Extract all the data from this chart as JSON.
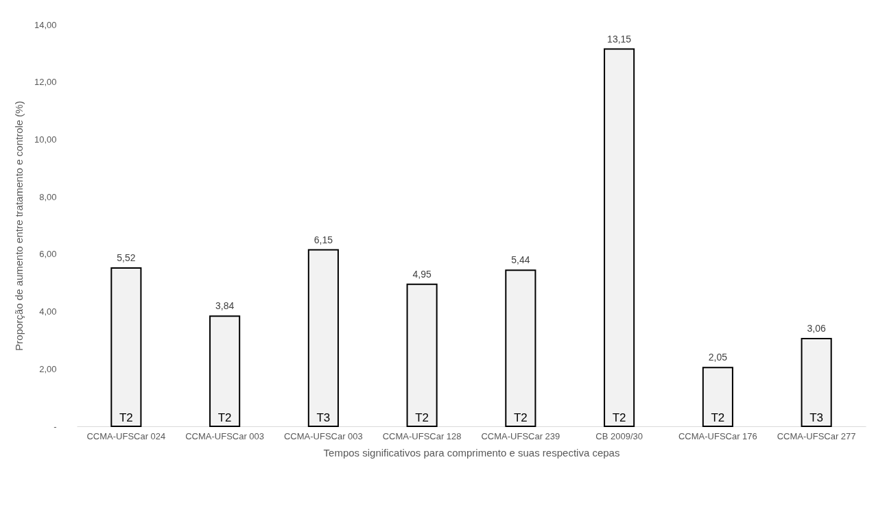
{
  "chart_data": {
    "type": "bar",
    "categories": [
      "CCMA-UFSCar\n024",
      "CCMA-UFSCar\n003",
      "CCMA-UFSCar\n003",
      "CCMA-UFSCar\n128",
      "CCMA-UFSCar\n239",
      "CB 2009/30",
      "CCMA-UFSCar\n176",
      "CCMA-UFSCar\n277"
    ],
    "values": [
      5.52,
      3.84,
      6.15,
      4.95,
      5.44,
      13.15,
      2.05,
      3.06
    ],
    "value_labels": [
      "5,52",
      "3,84",
      "6,15",
      "4,95",
      "5,44",
      "13,15",
      "2,05",
      "3,06"
    ],
    "color": "#f2f2f2",
    "annotations": [
      "T2",
      "T2",
      "T3",
      "T2",
      "T2",
      "T2",
      "T2",
      "T3"
    ],
    "xlabel": "Tempos significativos para comprimento e suas respectiva cepas",
    "ylabel": "Proporção de aumento entre tratamento e controle (%)",
    "ylim": [
      0,
      14
    ],
    "yticks": [
      {
        "value": 0,
        "label": "-"
      },
      {
        "value": 2,
        "label": "2,00"
      },
      {
        "value": 4,
        "label": "4,00"
      },
      {
        "value": 6,
        "label": "6,00"
      },
      {
        "value": 8,
        "label": "8,00"
      },
      {
        "value": 10,
        "label": "10,00"
      },
      {
        "value": 12,
        "label": "12,00"
      },
      {
        "value": 14,
        "label": "14,00"
      }
    ],
    "grid": false
  }
}
